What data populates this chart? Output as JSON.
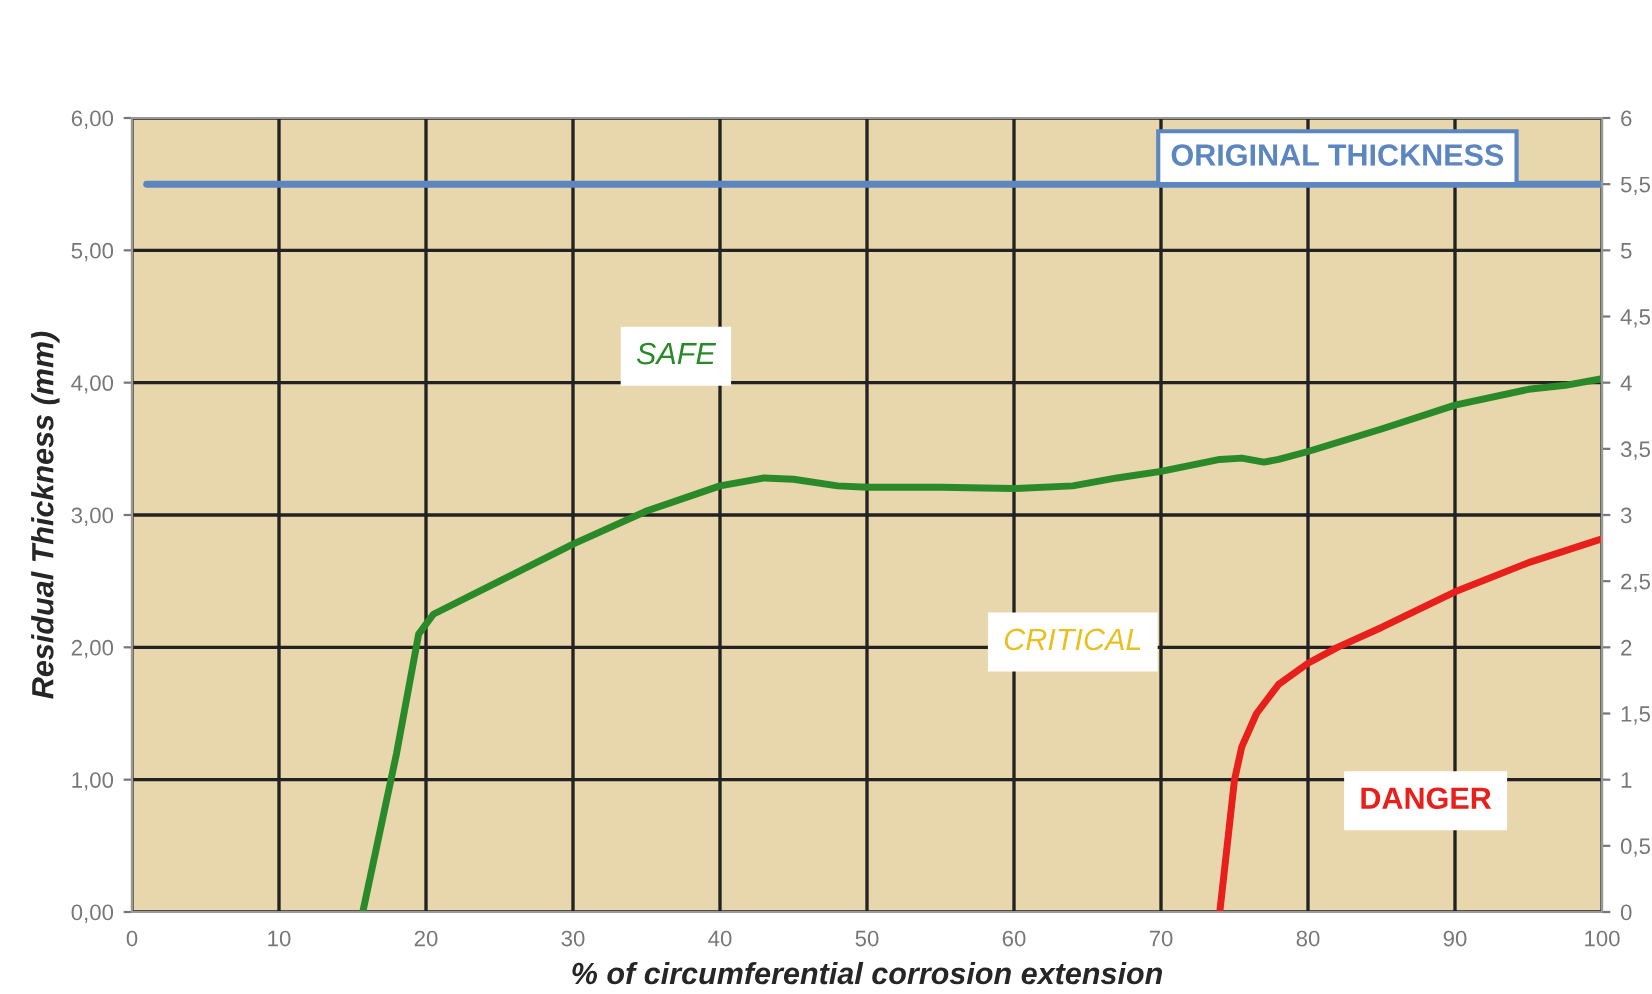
{
  "chart_data": {
    "type": "line",
    "xlabel": "% of circumferential corrosion extension",
    "ylabel": "Residual Thickness (mm)",
    "x": [
      15.7,
      18,
      19.5,
      20.5,
      25,
      30,
      35,
      40,
      43,
      45,
      48,
      50,
      55,
      60,
      64,
      67,
      70,
      74,
      75.5,
      77,
      78,
      80,
      85,
      90,
      95,
      97.5,
      100
    ],
    "series": [
      {
        "color": "#2a8a2a",
        "values": [
          0,
          1.2,
          2.1,
          2.25,
          2.5,
          2.78,
          3.03,
          3.22,
          3.28,
          3.27,
          3.22,
          3.21,
          3.21,
          3.2,
          3.22,
          3.28,
          3.33,
          3.42,
          3.43,
          3.4,
          3.42,
          3.48,
          3.65,
          3.83,
          3.95,
          3.98,
          4.03
        ]
      },
      {
        "color": "#e8201c",
        "x": [
          74,
          74.5,
          75,
          75.5,
          76.5,
          78,
          80,
          82,
          85,
          90,
          95,
          100
        ],
        "values": [
          0,
          0.5,
          1.0,
          1.25,
          1.5,
          1.72,
          1.88,
          2.0,
          2.15,
          2.42,
          2.64,
          2.82
        ]
      }
    ],
    "ref_lines": [
      {
        "axis": "y",
        "value": 5.5,
        "label": "ORIGINAL THICKNESS",
        "color": "#5b86c0"
      }
    ],
    "annotations": [
      "SAFE",
      "CRITICAL",
      "DANGER"
    ],
    "xlim": [
      0,
      100
    ],
    "xticks": [
      0,
      10,
      20,
      30,
      40,
      50,
      60,
      70,
      80,
      90,
      100
    ],
    "ylim": [
      0,
      6
    ],
    "yticks": [
      {
        "value": 0,
        "label": "0,00"
      },
      {
        "value": 1,
        "label": "1,00"
      },
      {
        "value": 2,
        "label": "2,00"
      },
      {
        "value": 3,
        "label": "3,00"
      },
      {
        "value": 4,
        "label": "4,00"
      },
      {
        "value": 5,
        "label": "5,00"
      },
      {
        "value": 6,
        "label": "6,00"
      }
    ],
    "y2lim": [
      0,
      6
    ],
    "y2ticks": [
      0,
      {
        "value": 0.5,
        "label": "0,5"
      },
      1,
      {
        "value": 1.5,
        "label": "1,5"
      },
      2,
      {
        "value": 2.5,
        "label": "2,5"
      },
      3,
      {
        "value": 3.5,
        "label": "3,5"
      },
      4,
      {
        "value": 4.5,
        "label": "4,5"
      },
      5,
      {
        "value": 5.5,
        "label": "5,5"
      },
      6
    ],
    "grid": true,
    "line_style": "solid",
    "marker": "none"
  }
}
